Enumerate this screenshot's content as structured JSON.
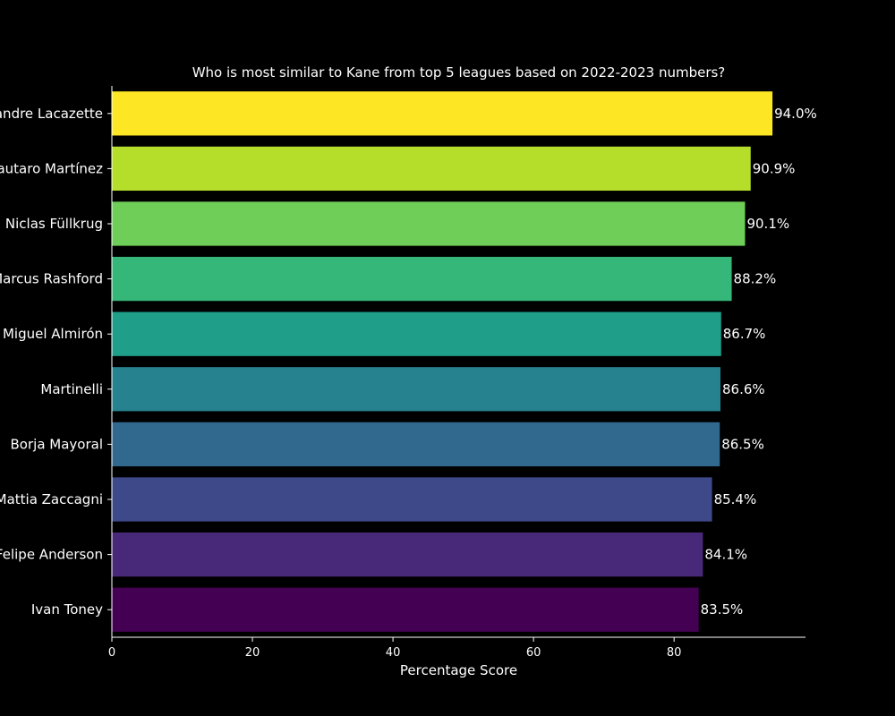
{
  "chart_data": {
    "type": "bar",
    "orientation": "horizontal",
    "title": "Who is most similar to Kane from top 5 leagues based on 2022-2023 numbers?",
    "xlabel": "Percentage Score",
    "ylabel": "",
    "xlim": [
      0,
      98.7
    ],
    "xticks": [
      0,
      20,
      40,
      60,
      80
    ],
    "grid": false,
    "categories": [
      "Alexandre Lacazette",
      "Lautaro Martínez",
      "Niclas Füllkrug",
      "Marcus Rashford",
      "Miguel Almirón",
      "Martinelli",
      "Borja Mayoral",
      "Mattia Zaccagni",
      "Felipe Anderson",
      "Ivan Toney"
    ],
    "values": [
      94.0,
      90.9,
      90.1,
      88.2,
      86.7,
      86.6,
      86.5,
      85.4,
      84.1,
      83.5
    ],
    "value_labels": [
      "94.0%",
      "90.9%",
      "90.1%",
      "88.2%",
      "86.7%",
      "86.6%",
      "86.5%",
      "85.4%",
      "84.1%",
      "83.5%"
    ],
    "colors": [
      "#fde725",
      "#b5de2b",
      "#6ece58",
      "#35b779",
      "#1f9e89",
      "#26828e",
      "#31688e",
      "#3e4989",
      "#482878",
      "#440154"
    ],
    "background": "#000000",
    "foreground": "#ffffff"
  }
}
